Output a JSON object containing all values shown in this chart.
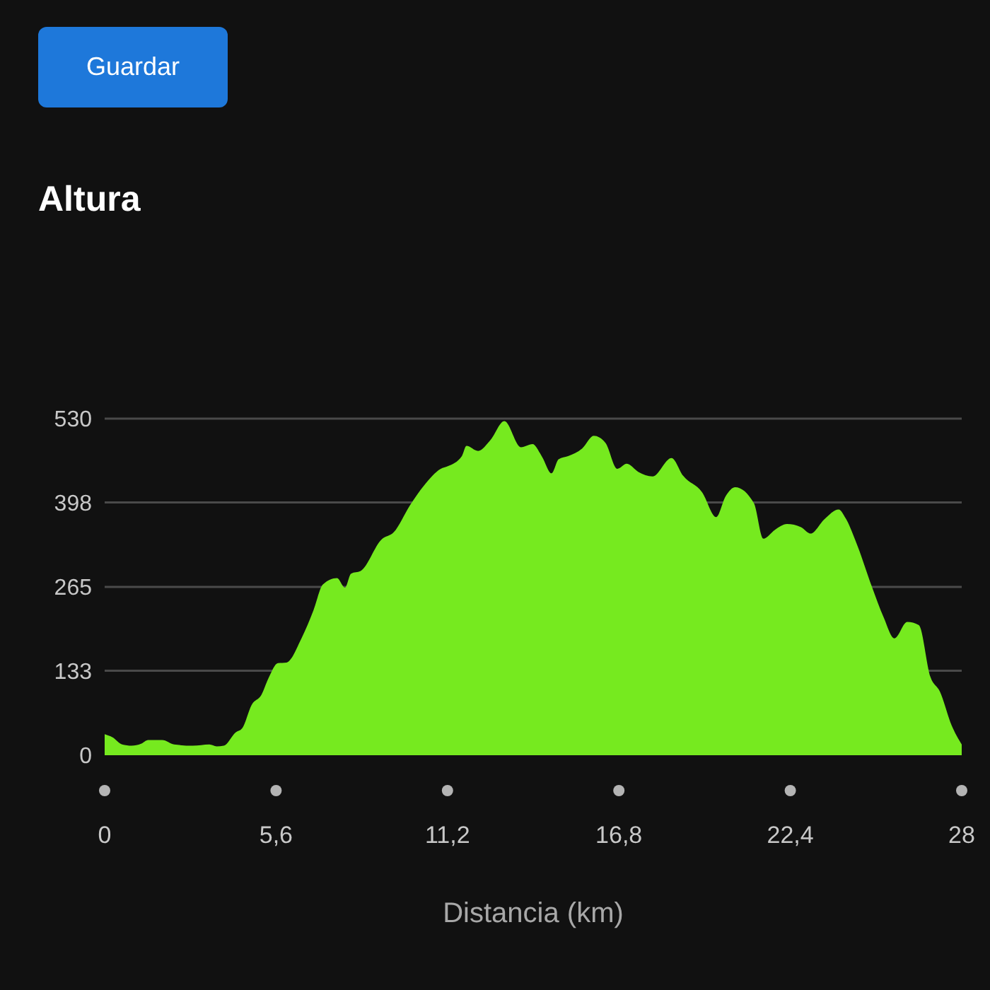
{
  "chart_data": {
    "type": "area",
    "title": "Altura",
    "xlabel": "Distancia (km)",
    "annotations": [
      "Guardar"
    ],
    "x": [
      0,
      0.26,
      0.57,
      0.88,
      1.19,
      1.42,
      1.88,
      2.27,
      2.88,
      3.42,
      3.66,
      3.89,
      4.28,
      4.5,
      4.81,
      5.12,
      5.35,
      5.66,
      5.94,
      6.43,
      6.82,
      7.13,
      7.59,
      7.85,
      8.05,
      8.36,
      9.05,
      9.44,
      9.98,
      10.44,
      10.98,
      11.21,
      11.67,
      11.82,
      12.2,
      12.6,
      13.06,
      13.6,
      13.98,
      14.29,
      14.6,
      14.83,
      15.14,
      15.6,
      15.98,
      16.36,
      16.75,
      17.06,
      17.44,
      17.9,
      18.52,
      18.9,
      19.52,
      19.98,
      20.29,
      20.6,
      21.21,
      21.52,
      21.9,
      22.29,
      22.75,
      23.06,
      23.52,
      23.98,
      24.21,
      24.6,
      25.06,
      25.45,
      25.8,
      26.22,
      26.6,
      26.98,
      27.29,
      27.67,
      28
    ],
    "values": [
      33,
      28,
      17,
      15,
      18,
      24,
      24,
      17,
      15,
      17,
      14,
      15,
      36,
      43,
      80,
      95,
      121,
      145,
      146,
      184,
      228,
      269,
      279,
      264,
      286,
      290,
      340,
      351,
      394,
      425,
      451,
      455,
      471,
      487,
      479,
      496,
      526,
      485,
      490,
      470,
      444,
      466,
      471,
      483,
      503,
      492,
      451,
      459,
      446,
      439,
      468,
      440,
      414,
      375,
      408,
      422,
      397,
      341,
      355,
      364,
      359,
      349,
      372,
      387,
      373,
      329,
      266,
      217,
      184,
      210,
      205,
      123,
      100,
      47,
      17
    ],
    "color": "#76ea1f",
    "xlim": [
      0,
      28
    ],
    "xticks": [
      0,
      {
        "value": 5.6,
        "label": "5,6"
      },
      {
        "value": 11.2,
        "label": "11,2"
      },
      {
        "value": 16.8,
        "label": "16,8"
      },
      {
        "value": 22.4,
        "label": "22,4"
      },
      28
    ],
    "ylim": [
      0,
      530
    ],
    "yticks": [
      0,
      133,
      265,
      398,
      530
    ],
    "grid": "y"
  }
}
